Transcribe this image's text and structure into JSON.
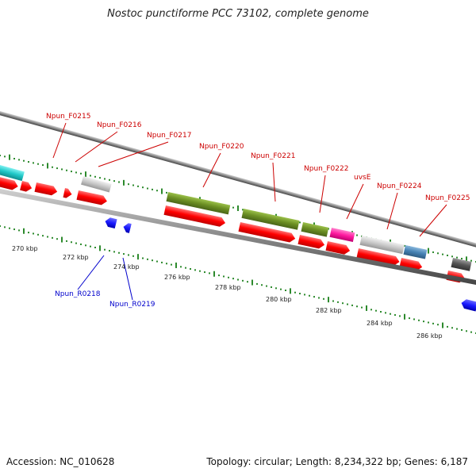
{
  "title": "Nostoc punctiforme PCC 73102, complete genome",
  "footer": {
    "accession": "Accession: NC_010628",
    "stats": "Topology: circular; Length: 8,234,322 bp; Genes: 6,187"
  },
  "colors": {
    "cds": "#ff1a1a",
    "olive": "#6b8e23",
    "cyan": "#20c8c8",
    "magenta": "#ff1aa0",
    "steel": "#4682b4",
    "lightgray": "#c8c8c8",
    "darkgray": "#555555",
    "blue": "#1a1aff",
    "tickgreen": "#2d8a2d",
    "fwdlabel": "#cc0000",
    "revlabel": "#0000cc"
  },
  "scale_labels": [
    "270 kbp",
    "272 kbp",
    "274 kbp",
    "276 kbp",
    "278 kbp",
    "280 kbp",
    "282 kbp",
    "284 kbp",
    "286 kbp"
  ],
  "forward_gene_labels": [
    "Npun_F0215",
    "Npun_F0216",
    "Npun_F0217",
    "Npun_F0220",
    "Npun_F0221",
    "Npun_F0222",
    "uvsE",
    "Npun_F0224",
    "Npun_F0225"
  ],
  "reverse_gene_labels": [
    "Npun_R0218",
    "Npun_R0219"
  ]
}
